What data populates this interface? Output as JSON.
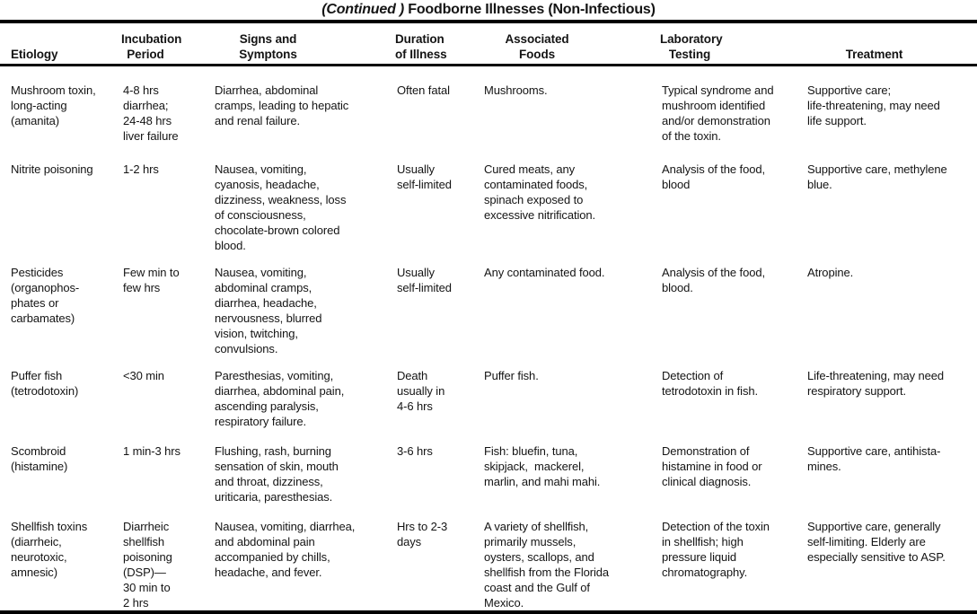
{
  "title": {
    "continued": "(Continued ) ",
    "main": "Foodborne Illnesses (Non-Infectious)"
  },
  "columns": {
    "etiology": "Etiology",
    "incubation": "Incubation\nPeriod",
    "signs": "Signs and\nSymptons",
    "duration": "Duration\nof Illness",
    "foods": "Associated\nFoods",
    "lab": "Laboratory\nTesting",
    "treatment": "Treatment"
  },
  "rows": [
    {
      "etiology": "Mushroom toxin,\nlong-acting\n(amanita)",
      "incubation": "4-8 hrs\ndiarrhea;\n24-48 hrs\nliver failure",
      "signs": "Diarrhea, abdominal\ncramps, leading to hepatic\nand renal failure.",
      "duration": "Often fatal",
      "foods": "Mushrooms.",
      "lab": "Typical syndrome and\nmushroom identified\nand/or demonstration\nof the toxin.",
      "treatment": "Supportive care;\nlife-threatening, may need\nlife support."
    },
    {
      "etiology": "Nitrite poisoning",
      "incubation": "1-2 hrs",
      "signs": "Nausea, vomiting,\ncyanosis, headache,\ndizziness, weakness, loss\nof consciousness,\nchocolate-brown colored\nblood.",
      "duration": "Usually\nself-limited",
      "foods": "Cured meats, any\ncontaminated foods,\nspinach exposed to\nexcessive nitrification.",
      "lab": "Analysis of the food,\nblood",
      "treatment": "Supportive care, methylene\nblue."
    },
    {
      "etiology": "Pesticides\n(organophos-\nphates or\ncarbamates)",
      "incubation": "Few min to\nfew hrs",
      "signs": "Nausea, vomiting,\nabdominal cramps,\ndiarrhea, headache,\nnervousness, blurred\nvision, twitching,\nconvulsions.",
      "duration": "Usually\nself-limited",
      "foods": "Any contaminated food.",
      "lab": "Analysis of the food,\nblood.",
      "treatment": "Atropine."
    },
    {
      "etiology": "Puffer fish\n(tetrodotoxin)",
      "incubation": "<30 min",
      "signs": "Paresthesias, vomiting,\ndiarrhea, abdominal pain,\nascending paralysis,\nrespiratory failure.",
      "duration": "Death\nusually in\n4-6 hrs",
      "foods": "Puffer fish.",
      "lab": "Detection of\ntetrodotoxin in fish.",
      "treatment": "Life-threatening, may need\nrespiratory support."
    },
    {
      "etiology": "Scombroid\n(histamine)",
      "incubation": "1 min-3 hrs",
      "signs": "Flushing, rash, burning\nsensation of skin, mouth\nand throat, dizziness,\nuriticaria, paresthesias.",
      "duration": "3-6 hrs",
      "foods": "Fish: bluefin, tuna,\nskipjack,  mackerel,\nmarlin, and mahi mahi.",
      "lab": "Demonstration of\nhistamine in food or\nclinical diagnosis.",
      "treatment": "Supportive care, antihista-\nmines."
    },
    {
      "etiology": "Shellfish toxins\n(diarrheic,\nneurotoxic,\namnesic)",
      "incubation": "Diarrheic\nshellfish\npoisoning\n(DSP)—\n30 min to\n2 hrs",
      "signs": "Nausea, vomiting, diarrhea,\nand abdominal pain\naccompanied by chills,\nheadache, and fever.",
      "duration": "Hrs to 2-3\ndays",
      "foods": "A variety of shellfish,\nprimarily mussels,\noysters, scallops, and\nshellfish from the Florida\ncoast and the Gulf of\nMexico.",
      "lab": "Detection of the toxin\nin shellfish; high\npressure liquid\nchromatography.",
      "treatment": "Supportive care, generally\nself-limiting. Elderly are\nespecially sensitive to ASP."
    }
  ]
}
